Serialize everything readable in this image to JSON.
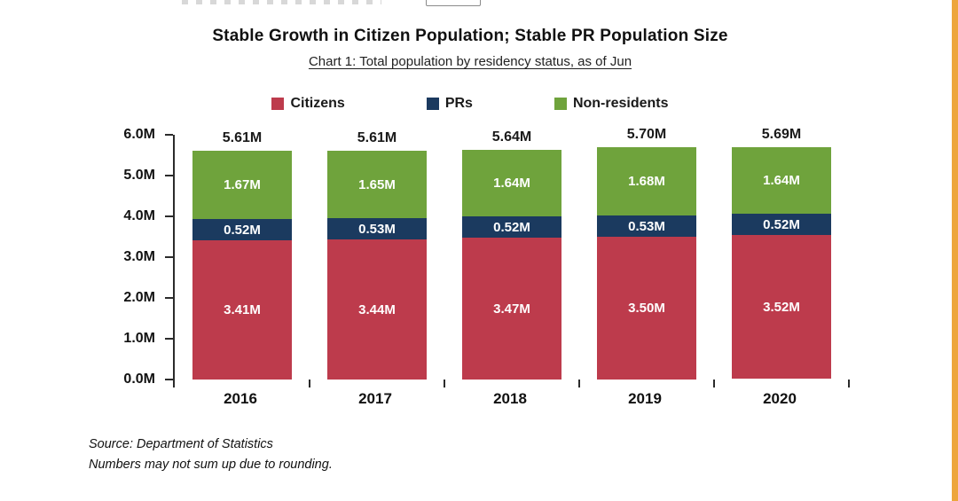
{
  "page": {
    "accent_strip_color": "#eda63d"
  },
  "header": {
    "title": "Stable Growth in Citizen Population; Stable PR Population Size",
    "subtitle": "Chart 1: Total population by residency status, as of Jun"
  },
  "footer": {
    "source": "Source: Department of Statistics",
    "note": "Numbers may not sum up due to rounding."
  },
  "chart_data": {
    "type": "bar",
    "stacked": true,
    "title": "Stable Growth in Citizen Population; Stable PR Population Size",
    "subtitle": "Chart 1: Total population by residency status, as of Jun",
    "categories": [
      "2016",
      "2017",
      "2018",
      "2019",
      "2020"
    ],
    "series": [
      {
        "name": "Citizens",
        "color": "#bd3b4c",
        "values": [
          3.41,
          3.44,
          3.47,
          3.5,
          3.52
        ],
        "labels": [
          "3.41M",
          "3.44M",
          "3.47M",
          "3.50M",
          "3.52M"
        ]
      },
      {
        "name": "PRs",
        "color": "#1b3a5f",
        "values": [
          0.52,
          0.53,
          0.52,
          0.53,
          0.52
        ],
        "labels": [
          "0.52M",
          "0.53M",
          "0.52M",
          "0.53M",
          "0.52M"
        ]
      },
      {
        "name": "Non-residents",
        "color": "#6fa33c",
        "values": [
          1.67,
          1.65,
          1.64,
          1.68,
          1.64
        ],
        "labels": [
          "1.67M",
          "1.65M",
          "1.64M",
          "1.68M",
          "1.64M"
        ]
      }
    ],
    "totals": [
      5.61,
      5.61,
      5.64,
      5.7,
      5.69
    ],
    "totals_labels": [
      "5.61M",
      "5.61M",
      "5.64M",
      "5.70M",
      "5.69M"
    ],
    "ylim": [
      0,
      6
    ],
    "yticks": [
      {
        "value": 0,
        "label": "0.0M"
      },
      {
        "value": 1,
        "label": "1.0M"
      },
      {
        "value": 2,
        "label": "2.0M"
      },
      {
        "value": 3,
        "label": "3.0M"
      },
      {
        "value": 4,
        "label": "4.0M"
      },
      {
        "value": 5,
        "label": "5.0M"
      },
      {
        "value": 6,
        "label": "6.0M"
      }
    ],
    "legend_position": "top",
    "grid": false
  }
}
